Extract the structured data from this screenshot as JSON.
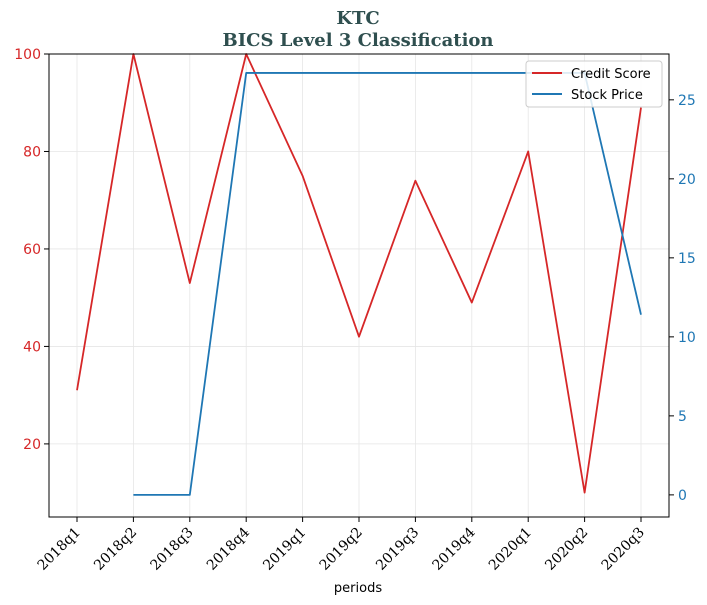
{
  "chart_data": {
    "type": "line",
    "title": "KTC",
    "subtitle": "BICS Level 3 Classification",
    "xlabel": "periods",
    "ylabel": "",
    "ylabel_right": "",
    "categories": [
      "2018q1",
      "2018q2",
      "2018q3",
      "2018q4",
      "2019q1",
      "2019q2",
      "2019q3",
      "2019q4",
      "2020q1",
      "2020q2",
      "2020q3"
    ],
    "ylim": [
      5,
      100
    ],
    "ylim_right": [
      -1.4,
      27.9
    ],
    "yticks": [
      20,
      40,
      60,
      80,
      100
    ],
    "yticks_right": [
      0,
      5,
      10,
      15,
      20,
      25
    ],
    "grid": true,
    "legend_position": "top-right",
    "series": [
      {
        "name": "Credit Score",
        "axis": "left",
        "color": "#d62728",
        "values": [
          31,
          100,
          53,
          100,
          75,
          42,
          74,
          49,
          80,
          10,
          89
        ]
      },
      {
        "name": "Stock Price",
        "axis": "right",
        "color": "#1f77b4",
        "values": [
          null,
          0,
          0,
          26.7,
          26.7,
          26.7,
          26.7,
          26.7,
          26.7,
          26.7,
          11.4
        ]
      }
    ]
  }
}
